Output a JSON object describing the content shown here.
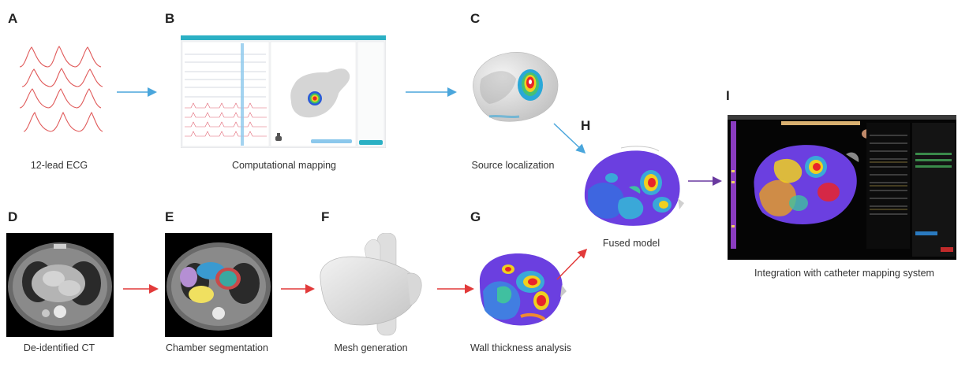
{
  "panels": {
    "A": {
      "letter": "A",
      "caption": "12-lead ECG"
    },
    "B": {
      "letter": "B",
      "caption": "Computational mapping"
    },
    "C": {
      "letter": "C",
      "caption": "Source localization"
    },
    "D": {
      "letter": "D",
      "caption": "De-identified CT"
    },
    "E": {
      "letter": "E",
      "caption": "Chamber segmentation"
    },
    "F": {
      "letter": "F",
      "caption": "Mesh generation"
    },
    "G": {
      "letter": "G",
      "caption": "Wall thickness analysis"
    },
    "H": {
      "letter": "H",
      "caption": "Fused model"
    },
    "I": {
      "letter": "I",
      "caption": "Integration with catheter mapping system"
    }
  },
  "colors": {
    "ecg_trace": "#e05a5a",
    "arrow_blue": "#4aa6dc",
    "arrow_red": "#e23a3a",
    "arrow_purple": "#6a3aa0",
    "ui_header": "#2bb0c4",
    "heatmap_hot": "#e8242a",
    "heatmap_base": "#6b3fe0"
  }
}
